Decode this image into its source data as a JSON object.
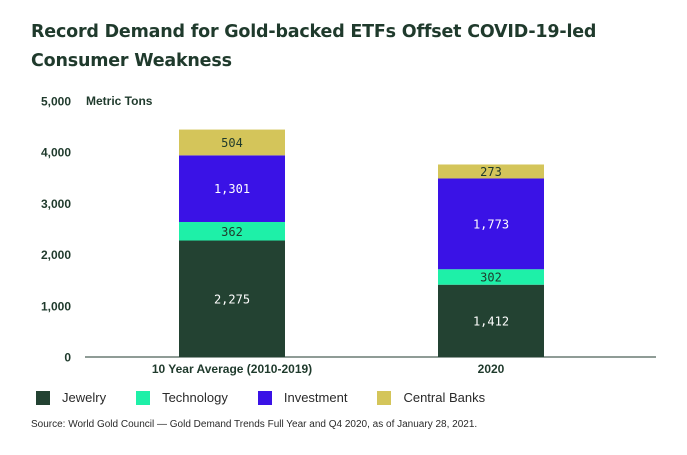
{
  "chart_data": {
    "type": "bar",
    "stacked": true,
    "title": "Record Demand for Gold-backed ETFs Offset COVID-19-led Consumer Weakness",
    "ylabel": "Metric Tons",
    "xlabel": "",
    "ylim": [
      0,
      5000
    ],
    "yticks": [
      "0",
      "1,000",
      "2,000",
      "3,000",
      "4,000",
      "5,000"
    ],
    "ytick_values": [
      0,
      1000,
      2000,
      3000,
      4000,
      5000
    ],
    "categories": [
      "10 Year Average (2010-2019)",
      "2020"
    ],
    "series": [
      {
        "name": "Jewelry",
        "color": "#234232",
        "label_color": "#ffffff",
        "values": [
          2275,
          1412
        ],
        "labels": [
          "2,275",
          "1,412"
        ]
      },
      {
        "name": "Technology",
        "color": "#1ef0a8",
        "label_color": "#1f3a2c",
        "values": [
          362,
          302
        ],
        "labels": [
          "362",
          "302"
        ]
      },
      {
        "name": "Investment",
        "color": "#3a12e6",
        "label_color": "#ffffff",
        "values": [
          1301,
          1773
        ],
        "labels": [
          "1,301",
          "1,773"
        ]
      },
      {
        "name": "Central Banks",
        "color": "#d4c55a",
        "label_color": "#1f3a2c",
        "values": [
          504,
          273
        ],
        "labels": [
          "504",
          "273"
        ]
      }
    ],
    "grid": false,
    "legend_position": "bottom-left"
  },
  "source": "Source: World Gold Council — Gold Demand Trends Full Year and Q4 2020, as of January 28, 2021."
}
